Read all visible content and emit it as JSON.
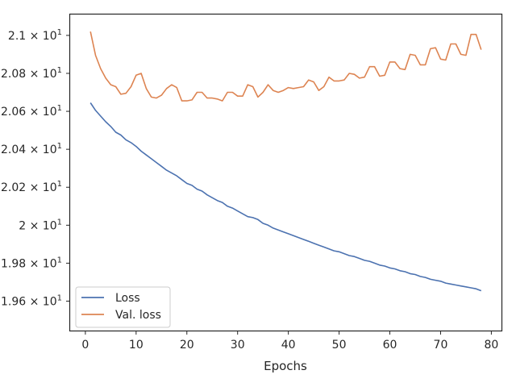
{
  "chart_data": {
    "type": "line",
    "title": "",
    "xlabel": "Epochs",
    "ylabel": "",
    "xlim": [
      -3,
      82
    ],
    "ylim": [
      19.445,
      21.11
    ],
    "grid": false,
    "legend_position": "lower-left",
    "x_ticks": [
      {
        "value": 0,
        "label": "0"
      },
      {
        "value": 10,
        "label": "10"
      },
      {
        "value": 20,
        "label": "20"
      },
      {
        "value": 30,
        "label": "30"
      },
      {
        "value": 40,
        "label": "40"
      },
      {
        "value": 50,
        "label": "50"
      },
      {
        "value": 60,
        "label": "60"
      },
      {
        "value": 70,
        "label": "70"
      },
      {
        "value": 80,
        "label": "80"
      }
    ],
    "y_ticks": [
      {
        "value": 19.6,
        "label": "1.96 × 10",
        "exp": "1"
      },
      {
        "value": 19.8,
        "label": "1.98 × 10",
        "exp": "1"
      },
      {
        "value": 20.0,
        "label": "2 × 10",
        "exp": "1"
      },
      {
        "value": 20.2,
        "label": "2.02 × 10",
        "exp": "1"
      },
      {
        "value": 20.4,
        "label": "2.04 × 10",
        "exp": "1"
      },
      {
        "value": 20.6,
        "label": "2.06 × 10",
        "exp": "1"
      },
      {
        "value": 20.8,
        "label": "2.08 × 10",
        "exp": "1"
      },
      {
        "value": 21.0,
        "label": "2.1 × 10",
        "exp": "1"
      }
    ],
    "x": [
      1,
      2,
      3,
      4,
      5,
      6,
      7,
      8,
      9,
      10,
      11,
      12,
      13,
      14,
      15,
      16,
      17,
      18,
      19,
      20,
      21,
      22,
      23,
      24,
      25,
      26,
      27,
      28,
      29,
      30,
      31,
      32,
      33,
      34,
      35,
      36,
      37,
      38,
      39,
      40,
      41,
      42,
      43,
      44,
      45,
      46,
      47,
      48,
      49,
      50,
      51,
      52,
      53,
      54,
      55,
      56,
      57,
      58,
      59,
      60,
      61,
      62,
      63,
      64,
      65,
      66,
      67,
      68,
      69,
      70,
      71,
      72,
      73,
      74,
      75,
      76,
      77,
      78
    ],
    "series": [
      {
        "name": "Loss",
        "color": "#4c72b0",
        "values": [
          20.645,
          20.605,
          20.575,
          20.545,
          20.52,
          20.49,
          20.475,
          20.45,
          20.435,
          20.415,
          20.39,
          20.37,
          20.35,
          20.33,
          20.31,
          20.29,
          20.275,
          20.26,
          20.24,
          20.22,
          20.21,
          20.19,
          20.18,
          20.16,
          20.145,
          20.13,
          20.12,
          20.1,
          20.09,
          20.075,
          20.06,
          20.045,
          20.04,
          20.03,
          20.01,
          20.0,
          19.985,
          19.975,
          19.965,
          19.955,
          19.945,
          19.935,
          19.925,
          19.915,
          19.905,
          19.895,
          19.885,
          19.875,
          19.865,
          19.86,
          19.85,
          19.84,
          19.835,
          19.825,
          19.815,
          19.81,
          19.8,
          19.79,
          19.785,
          19.775,
          19.77,
          19.76,
          19.755,
          19.745,
          19.74,
          19.73,
          19.725,
          19.715,
          19.71,
          19.705,
          19.695,
          19.69,
          19.685,
          19.68,
          19.675,
          19.67,
          19.665,
          19.655
        ]
      },
      {
        "name": "Val. loss",
        "color": "#dd8452",
        "values": [
          21.02,
          20.895,
          20.825,
          20.775,
          20.74,
          20.73,
          20.69,
          20.695,
          20.73,
          20.79,
          20.8,
          20.72,
          20.675,
          20.67,
          20.685,
          20.72,
          20.74,
          20.725,
          20.655,
          20.655,
          20.66,
          20.7,
          20.7,
          20.67,
          20.67,
          20.665,
          20.655,
          20.7,
          20.7,
          20.68,
          20.68,
          20.74,
          20.73,
          20.675,
          20.7,
          20.74,
          20.71,
          20.7,
          20.71,
          20.725,
          20.72,
          20.725,
          20.73,
          20.765,
          20.755,
          20.71,
          20.73,
          20.78,
          20.76,
          20.76,
          20.765,
          20.8,
          20.795,
          20.775,
          20.78,
          20.835,
          20.835,
          20.785,
          20.79,
          20.86,
          20.86,
          20.825,
          20.82,
          20.9,
          20.895,
          20.845,
          20.845,
          20.93,
          20.935,
          20.875,
          20.87,
          20.955,
          20.955,
          20.9,
          20.895,
          21.005,
          21.005,
          20.925
        ]
      }
    ]
  }
}
